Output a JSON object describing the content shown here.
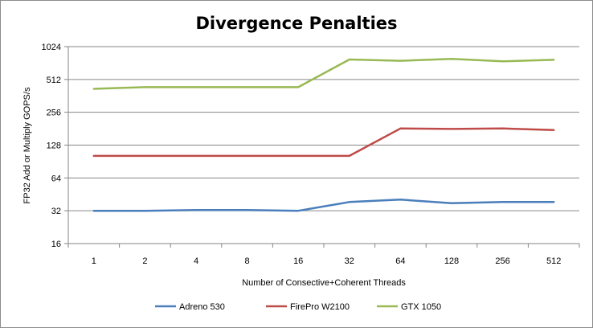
{
  "chart_data": {
    "type": "line",
    "title": "Divergence Penalties",
    "xlabel": "Number of Consective+Coherent Threads",
    "ylabel": "FP32 Add or Multiply GOPS/s",
    "y_scale": "log2",
    "ylim": [
      16,
      1024
    ],
    "y_ticks": [
      16,
      32,
      64,
      128,
      256,
      512,
      1024
    ],
    "categories": [
      "1",
      "2",
      "4",
      "8",
      "16",
      "32",
      "64",
      "128",
      "256",
      "512"
    ],
    "grid": "horizontal",
    "legend_position": "bottom",
    "series": [
      {
        "name": "Adreno 530",
        "color": "#4a7ebb",
        "values": [
          32,
          32,
          32.5,
          32.5,
          32,
          38.5,
          40.5,
          37.5,
          38.5,
          38.5
        ]
      },
      {
        "name": "FirePro W2100",
        "color": "#be4b48",
        "values": [
          102,
          102,
          102,
          102,
          102,
          102,
          182,
          180,
          182,
          176
        ]
      },
      {
        "name": "GTX 1050",
        "color": "#98b954",
        "values": [
          420,
          435,
          435,
          435,
          435,
          780,
          760,
          790,
          750,
          775
        ]
      }
    ]
  }
}
